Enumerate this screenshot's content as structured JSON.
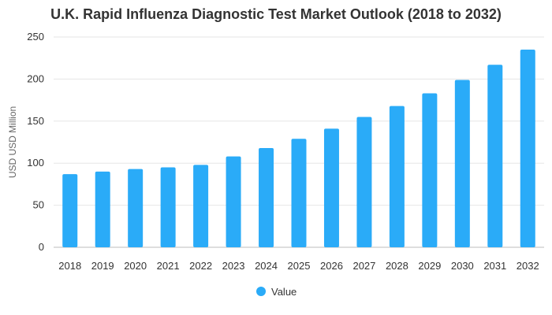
{
  "chart_data": {
    "type": "bar",
    "title": "U.K. Rapid Influenza Diagnostic Test Market Outlook (2018 to 2032)",
    "xlabel": "",
    "ylabel": "USD USD Million",
    "categories": [
      "2018",
      "2019",
      "2020",
      "2021",
      "2022",
      "2023",
      "2024",
      "2025",
      "2026",
      "2027",
      "2028",
      "2029",
      "2030",
      "2031",
      "2032"
    ],
    "series": [
      {
        "name": "Value",
        "color": "#2aabf8",
        "values": [
          87,
          90,
          93,
          95,
          98,
          108,
          118,
          129,
          141,
          155,
          168,
          183,
          199,
          217,
          235
        ]
      }
    ],
    "ylim": [
      0,
      250
    ],
    "yticks": [
      "0",
      "50",
      "100",
      "150",
      "200",
      "250"
    ],
    "grid": true,
    "legend_position": "bottom"
  }
}
